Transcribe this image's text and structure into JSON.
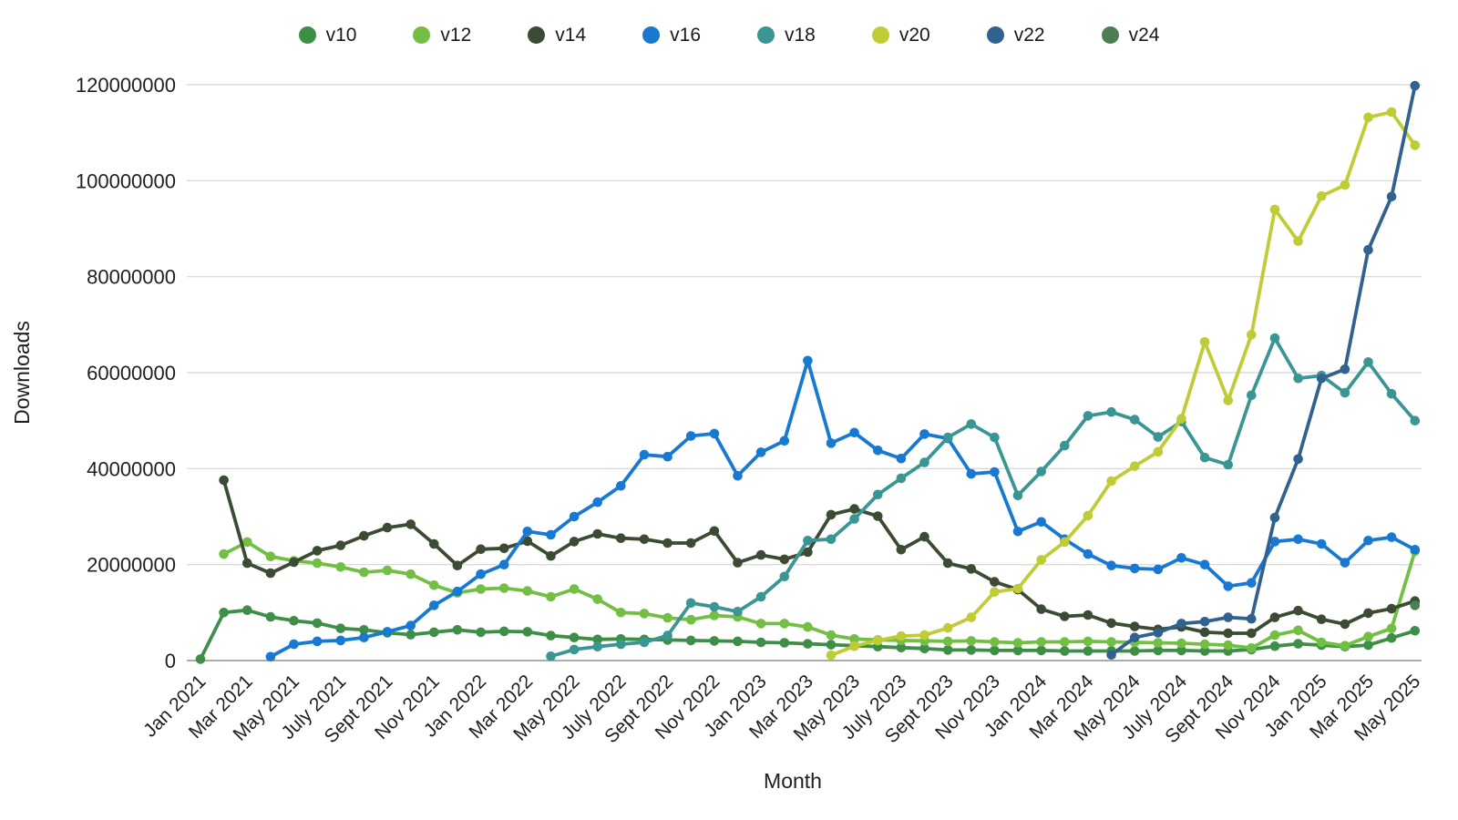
{
  "chart_data": {
    "type": "line",
    "title": "",
    "xlabel": "Month",
    "ylabel": "Downloads",
    "ylim": [
      0,
      120000000
    ],
    "ytick_interval": 20000000,
    "grid": "horizontal",
    "legend_position": "top-center",
    "xtick_label_every": 2,
    "x_categories": [
      "Jan 2021",
      "Feb 2021",
      "Mar 2021",
      "Apr 2021",
      "May 2021",
      "June 2021",
      "July 2021",
      "Aug 2021",
      "Sept 2021",
      "Oct 2021",
      "Nov 2021",
      "Dec 2021",
      "Jan 2022",
      "Feb 2022",
      "Mar 2022",
      "Apr 2022",
      "May 2022",
      "June 2022",
      "July 2022",
      "Aug 2022",
      "Sept 2022",
      "Oct 2022",
      "Nov 2022",
      "Dec 2022",
      "Jan 2023",
      "Feb 2023",
      "Mar 2023",
      "Apr 2023",
      "May 2023",
      "June 2023",
      "July 2023",
      "Aug 2023",
      "Sept 2023",
      "Oct 2023",
      "Nov 2023",
      "Dec 2023",
      "Jan 2024",
      "Feb 2024",
      "Mar 2024",
      "Apr 2024",
      "May 2024",
      "June 2024",
      "July 2024",
      "Aug 2024",
      "Sept 2024",
      "Oct 2024",
      "Nov 2024",
      "Dec 2024",
      "Jan 2025",
      "Feb 2025",
      "Mar 2025",
      "Apr 2025",
      "May 2025"
    ],
    "series": [
      {
        "name": "v10",
        "color": "#3e8e47",
        "values": [
          300000,
          10000000,
          10500000,
          9100000,
          8300000,
          7800000,
          6700000,
          6400000,
          5800000,
          5400000,
          5900000,
          6400000,
          5900000,
          6100000,
          6000000,
          5200000,
          4800000,
          4400000,
          4500000,
          4400000,
          4300000,
          4200000,
          4100000,
          4000000,
          3800000,
          3700000,
          3500000,
          3300000,
          3100000,
          2900000,
          2700000,
          2500000,
          2200000,
          2200000,
          2100000,
          2100000,
          2100000,
          2000000,
          2000000,
          2000000,
          2000000,
          2100000,
          2100000,
          2000000,
          2000000,
          2300000,
          3000000,
          3500000,
          3200000,
          2900000,
          3200000,
          4700000,
          6200000
        ]
      },
      {
        "name": "v12",
        "color": "#72bf44",
        "values": [
          null,
          22200000,
          24700000,
          21700000,
          20800000,
          20300000,
          19500000,
          18400000,
          18800000,
          18000000,
          15700000,
          14100000,
          14900000,
          15100000,
          14500000,
          13300000,
          14900000,
          12800000,
          10000000,
          9800000,
          8900000,
          8500000,
          9400000,
          9100000,
          7700000,
          7700000,
          7000000,
          5300000,
          4500000,
          4300000,
          4200000,
          4100000,
          4000000,
          4100000,
          3900000,
          3700000,
          3900000,
          3900000,
          4000000,
          3900000,
          3800000,
          3700000,
          3600000,
          3400000,
          3200000,
          2600000,
          5300000,
          6300000,
          3800000,
          3100000,
          5000000,
          6700000,
          22800000
        ]
      },
      {
        "name": "v14",
        "color": "#3c4b33",
        "values": [
          null,
          37600000,
          20300000,
          18200000,
          20500000,
          22900000,
          24000000,
          26000000,
          27700000,
          28400000,
          24300000,
          19800000,
          23200000,
          23400000,
          24900000,
          21800000,
          24800000,
          26400000,
          25500000,
          25300000,
          24500000,
          24500000,
          27000000,
          20400000,
          22000000,
          21100000,
          22600000,
          30400000,
          31600000,
          30100000,
          23100000,
          25800000,
          20300000,
          19100000,
          16400000,
          14800000,
          10700000,
          9200000,
          9500000,
          7800000,
          7100000,
          6500000,
          7000000,
          5900000,
          5700000,
          5700000,
          9000000,
          10400000,
          8600000,
          7600000,
          9900000,
          10800000,
          12400000
        ]
      },
      {
        "name": "v16",
        "color": "#1779d2",
        "values": [
          null,
          null,
          null,
          800000,
          3400000,
          4000000,
          4200000,
          4800000,
          6000000,
          7300000,
          11500000,
          14400000,
          18000000,
          20000000,
          26900000,
          26200000,
          30000000,
          33000000,
          36400000,
          42900000,
          42500000,
          46800000,
          47300000,
          38500000,
          43400000,
          45800000,
          62500000,
          45300000,
          47500000,
          43800000,
          42100000,
          47200000,
          46300000,
          38900000,
          39300000,
          26900000,
          28900000,
          25300000,
          22200000,
          19800000,
          19200000,
          19000000,
          21400000,
          20000000,
          15500000,
          16200000,
          24800000,
          25300000,
          24300000,
          20400000,
          25000000,
          25700000,
          23100000
        ]
      },
      {
        "name": "v18",
        "color": "#3a9693",
        "values": [
          null,
          null,
          null,
          null,
          null,
          null,
          null,
          null,
          null,
          null,
          null,
          null,
          null,
          null,
          null,
          900000,
          2300000,
          2900000,
          3400000,
          3800000,
          5200000,
          12000000,
          11200000,
          10200000,
          13300000,
          17500000,
          25000000,
          25300000,
          29500000,
          34600000,
          38000000,
          41300000,
          46500000,
          49300000,
          46500000,
          34400000,
          39400000,
          44800000,
          51000000,
          51800000,
          50200000,
          46600000,
          49800000,
          42300000,
          40800000,
          55300000,
          67200000,
          58800000,
          59400000,
          55800000,
          62200000,
          55600000,
          50000000
        ]
      },
      {
        "name": "v20",
        "color": "#c0cc35",
        "values": [
          null,
          null,
          null,
          null,
          null,
          null,
          null,
          null,
          null,
          null,
          null,
          null,
          null,
          null,
          null,
          null,
          null,
          null,
          null,
          null,
          null,
          null,
          null,
          null,
          null,
          null,
          null,
          1100000,
          3000000,
          4200000,
          5100000,
          5300000,
          6800000,
          9000000,
          14300000,
          15000000,
          21000000,
          24700000,
          30200000,
          37400000,
          40500000,
          43500000,
          50400000,
          66400000,
          54200000,
          67900000,
          94000000,
          87400000,
          96800000,
          99100000,
          113200000,
          114300000,
          107400000
        ]
      },
      {
        "name": "v22",
        "color": "#31618e",
        "values": [
          null,
          null,
          null,
          null,
          null,
          null,
          null,
          null,
          null,
          null,
          null,
          null,
          null,
          null,
          null,
          null,
          null,
          null,
          null,
          null,
          null,
          null,
          null,
          null,
          null,
          null,
          null,
          null,
          null,
          null,
          null,
          null,
          null,
          null,
          null,
          null,
          null,
          null,
          null,
          1200000,
          4800000,
          5800000,
          7700000,
          8100000,
          9000000,
          8700000,
          29800000,
          42000000,
          58800000,
          60700000,
          85600000,
          96700000,
          119800000
        ]
      },
      {
        "name": "v24",
        "color": "#4b7e55",
        "values": [
          null,
          null,
          null,
          null,
          null,
          null,
          null,
          null,
          null,
          null,
          null,
          null,
          null,
          null,
          null,
          null,
          null,
          null,
          null,
          null,
          null,
          null,
          null,
          null,
          null,
          null,
          null,
          null,
          null,
          null,
          null,
          null,
          null,
          null,
          null,
          null,
          null,
          null,
          null,
          null,
          null,
          null,
          null,
          null,
          null,
          null,
          null,
          null,
          null,
          null,
          null,
          null,
          11500000
        ]
      }
    ]
  },
  "style": {
    "grid_color": "#d4d4d4",
    "axis_line_color": "#8f8f8f",
    "text_color": "#1f1f1f"
  }
}
